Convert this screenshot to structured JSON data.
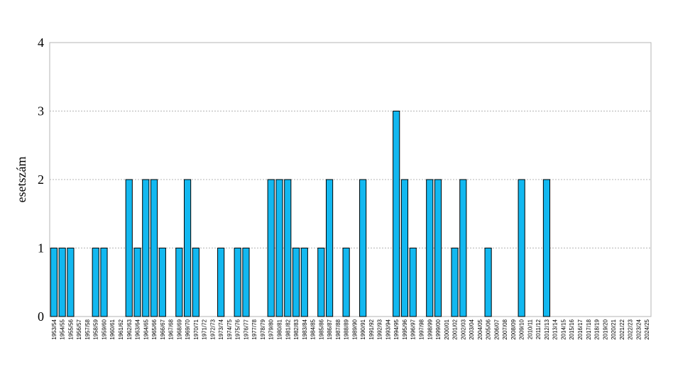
{
  "chart_data": {
    "type": "bar",
    "ylabel": "esetszám",
    "ylim": [
      0,
      4
    ],
    "yticks": [
      0,
      1,
      2,
      3,
      4
    ],
    "grid": true,
    "bar_color": "#12b8f0",
    "categories": [
      "1953/54",
      "1954/55",
      "1955/56",
      "1956/57",
      "1957/58",
      "1958/59",
      "1959/60",
      "1960/61",
      "1961/62",
      "1962/63",
      "1963/64",
      "1964/65",
      "1965/66",
      "1966/67",
      "1967/68",
      "1968/69",
      "1969/70",
      "1970/71",
      "1971/72",
      "1972/73",
      "1973/74",
      "1974/75",
      "1975/76",
      "1976/77",
      "1977/78",
      "1978/79",
      "1979/80",
      "1980/81",
      "1981/82",
      "1982/83",
      "1983/84",
      "1984/85",
      "1985/86",
      "1986/87",
      "1987/88",
      "1988/89",
      "1989/90",
      "1990/91",
      "1991/92",
      "1992/93",
      "1993/94",
      "1994/95",
      "1995/96",
      "1996/97",
      "1997/98",
      "1998/99",
      "1999/00",
      "2000/01",
      "2001/02",
      "2002/03",
      "2003/04",
      "2004/05",
      "2005/06",
      "2006/07",
      "2007/08",
      "2008/09",
      "2009/10",
      "2010/11",
      "2011/12",
      "2012/13",
      "2013/14",
      "2014/15",
      "2015/16",
      "2016/17",
      "2017/18",
      "2018/19",
      "2019/20",
      "2020/21",
      "2021/22",
      "2022/23",
      "2023/24",
      "2024/25"
    ],
    "values": [
      1,
      1,
      1,
      0,
      0,
      1,
      1,
      0,
      0,
      2,
      1,
      2,
      2,
      1,
      0,
      1,
      2,
      1,
      0,
      0,
      1,
      0,
      1,
      1,
      0,
      0,
      2,
      2,
      2,
      1,
      1,
      0,
      1,
      2,
      0,
      1,
      0,
      2,
      0,
      0,
      0,
      3,
      2,
      1,
      0,
      2,
      2,
      0,
      1,
      2,
      0,
      0,
      1,
      0,
      0,
      0,
      2,
      0,
      0,
      2,
      0,
      0,
      0,
      0,
      0,
      0,
      0,
      0,
      0,
      0,
      0,
      0
    ]
  }
}
